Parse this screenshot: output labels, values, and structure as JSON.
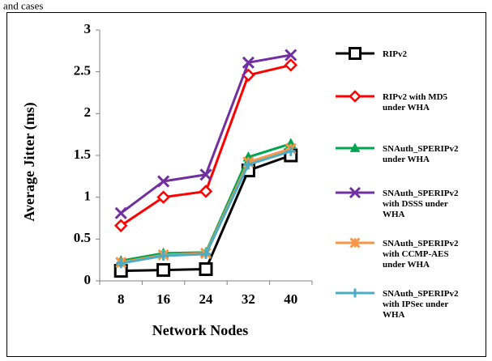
{
  "page": {
    "top_text": "and cases"
  },
  "chart_data": {
    "type": "line",
    "title": "",
    "xlabel": "Network Nodes",
    "ylabel": "Average Jitter (ms)",
    "categories": [
      "8",
      "16",
      "24",
      "32",
      "40"
    ],
    "ylim": [
      0,
      3
    ],
    "yticks": [
      "0",
      "0.5",
      "1",
      "1.5",
      "2",
      "2.5",
      "3"
    ],
    "ytick_values": [
      0,
      0.5,
      1,
      1.5,
      2,
      2.5,
      3
    ],
    "grid": false,
    "legend_position": "right",
    "series": [
      {
        "name": "RIPv2",
        "name_lines": [
          "RIPv2"
        ],
        "color": "#000000",
        "marker": "square",
        "values": [
          0.12,
          0.13,
          0.14,
          1.32,
          1.5
        ]
      },
      {
        "name": "RIPv2 with MD5 under WHA",
        "name_lines": [
          "RIPv2 with MD5",
          "under WHA"
        ],
        "color": "#ff0000",
        "marker": "diamond",
        "values": [
          0.66,
          1.0,
          1.07,
          2.46,
          2.58
        ]
      },
      {
        "name": "SNAuth_SPERIPv2 under WHA",
        "name_lines": [
          "SNAuth_SPERIPv2",
          "under WHA"
        ],
        "color": "#00a64f",
        "marker": "triangle",
        "values": [
          0.24,
          0.33,
          0.34,
          1.48,
          1.64
        ]
      },
      {
        "name": "SNAuth_SPERIPv2 with DSSS under WHA",
        "name_lines": [
          "SNAuth_SPERIPv2",
          "with DSSS under",
          "WHA"
        ],
        "color": "#7030a0",
        "marker": "x",
        "values": [
          0.81,
          1.19,
          1.27,
          2.61,
          2.7
        ]
      },
      {
        "name": "SNAuth_SPERIPv2 with CCMP-AES under WHA",
        "name_lines": [
          "SNAuth_SPERIPv2",
          "with CCMP-AES",
          "under WHA"
        ],
        "color": "#f79646",
        "marker": "star",
        "values": [
          0.22,
          0.31,
          0.33,
          1.42,
          1.58
        ]
      },
      {
        "name": "SNAuth_SPERIPv2 with IPSec under WHA",
        "name_lines": [
          "SNAuth_SPERIPv2",
          "with IPSec under",
          "WHA"
        ],
        "color": "#4bacc6",
        "marker": "plus",
        "values": [
          0.21,
          0.3,
          0.32,
          1.39,
          1.55
        ]
      }
    ]
  }
}
